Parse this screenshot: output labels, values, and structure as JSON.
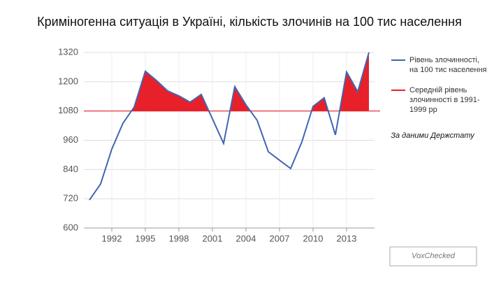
{
  "chart_data": {
    "type": "line",
    "title": "Криміногенна ситуація в Україні, кількість злочинів на 100 тис населення",
    "x": [
      1990,
      1991,
      1992,
      1993,
      1994,
      1995,
      1996,
      1997,
      1998,
      1999,
      2000,
      2001,
      2002,
      2003,
      2004,
      2005,
      2006,
      2007,
      2008,
      2009,
      2010,
      2011,
      2012,
      2013,
      2014,
      2015
    ],
    "series": [
      {
        "name": "Рівень злочинності, на 100 тис населення",
        "color": "#4166b0",
        "values": [
          715,
          781,
          924,
          1030,
          1096,
          1243,
          1205,
          1162,
          1142,
          1116,
          1148,
          1048,
          947,
          1180,
          1105,
          1042,
          913,
          878,
          844,
          953,
          1099,
          1134,
          982,
          1240,
          1159,
          1320
        ]
      }
    ],
    "reference_line": {
      "name": "Середній рівень злочинності в 1991-1999 рр",
      "value": 1080,
      "color": "#e8202a"
    },
    "fill_above_reference": true,
    "xlim": [
      1989.5,
      2015.5
    ],
    "xticks": [
      1992,
      1995,
      1998,
      2001,
      2004,
      2007,
      2010,
      2013
    ],
    "ylim": [
      600,
      1320
    ],
    "yticks": [
      600,
      720,
      840,
      960,
      1080,
      1200,
      1320
    ],
    "grid": true,
    "annotation": "За даними Держстату",
    "watermark": "VoxChecked"
  }
}
